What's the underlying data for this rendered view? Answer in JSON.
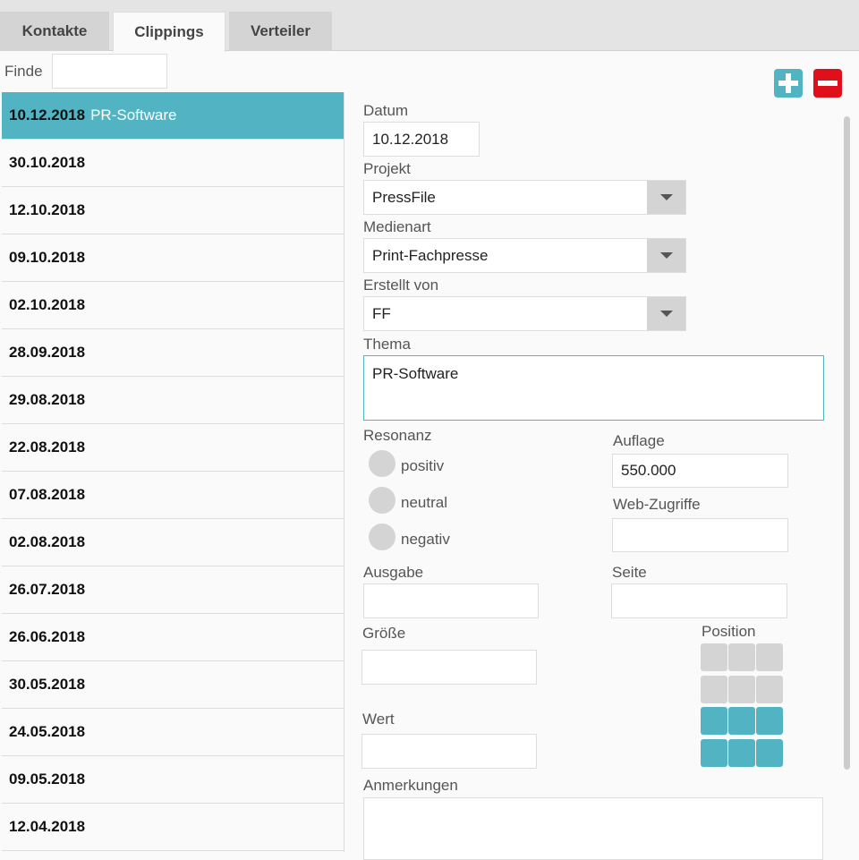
{
  "tabs": [
    {
      "label": "Kontakte"
    },
    {
      "label": "Clippings"
    },
    {
      "label": "Verteiler"
    }
  ],
  "search": {
    "label": "Finde",
    "value": ""
  },
  "list": [
    {
      "date": "10.12.2018",
      "title": "PR-Software"
    },
    {
      "date": "30.10.2018",
      "title": ""
    },
    {
      "date": "12.10.2018",
      "title": ""
    },
    {
      "date": "09.10.2018",
      "title": ""
    },
    {
      "date": "02.10.2018",
      "title": ""
    },
    {
      "date": "28.09.2018",
      "title": ""
    },
    {
      "date": "29.08.2018",
      "title": ""
    },
    {
      "date": "22.08.2018",
      "title": ""
    },
    {
      "date": "07.08.2018",
      "title": ""
    },
    {
      "date": "02.08.2018",
      "title": ""
    },
    {
      "date": "26.07.2018",
      "title": ""
    },
    {
      "date": "26.06.2018",
      "title": ""
    },
    {
      "date": "30.05.2018",
      "title": ""
    },
    {
      "date": "24.05.2018",
      "title": ""
    },
    {
      "date": "09.05.2018",
      "title": ""
    },
    {
      "date": "12.04.2018",
      "title": ""
    }
  ],
  "form": {
    "datum": {
      "label": "Datum",
      "value": "10.12.2018"
    },
    "projekt": {
      "label": "Projekt",
      "value": "PressFile"
    },
    "medienart": {
      "label": "Medienart",
      "value": "Print-Fachpresse"
    },
    "erstellt": {
      "label": "Erstellt von",
      "value": "FF"
    },
    "thema": {
      "label": "Thema",
      "value": "PR-Software"
    },
    "resonanz": {
      "label": "Resonanz",
      "options": [
        "positiv",
        "neutral",
        "negativ"
      ]
    },
    "auflage": {
      "label": "Auflage",
      "value": "550.000"
    },
    "web": {
      "label": "Web-Zugriffe",
      "value": ""
    },
    "ausgabe": {
      "label": "Ausgabe",
      "value": ""
    },
    "seite": {
      "label": "Seite",
      "value": ""
    },
    "groesse": {
      "label": "Größe",
      "value": ""
    },
    "wert": {
      "label": "Wert",
      "value": ""
    },
    "position": {
      "label": "Position",
      "selected_rows": [
        3,
        4
      ],
      "rows": 4,
      "cols": 3
    },
    "anmerkungen": {
      "label": "Anmerkungen",
      "value": ""
    }
  },
  "colors": {
    "accent": "#52b3c3",
    "delete": "#e0101a"
  }
}
